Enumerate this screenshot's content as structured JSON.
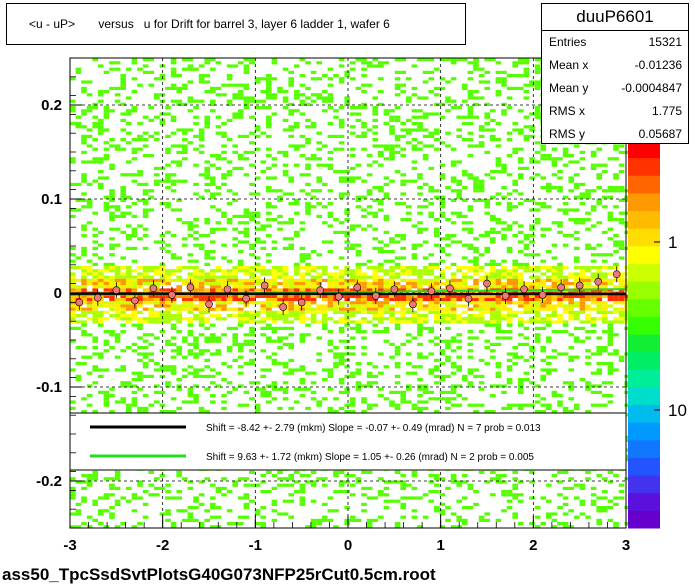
{
  "title": "<u - uP>       versus   u for Drift for barrel 3, layer 6 ladder 1, wafer 6",
  "stats": {
    "name": "duuP6601",
    "rows": [
      {
        "label": "Entries",
        "value": "15321"
      },
      {
        "label": "Mean x",
        "value": "-0.01236"
      },
      {
        "label": "Mean y",
        "value": "-0.0004847"
      },
      {
        "label": "RMS x",
        "value": "1.775"
      },
      {
        "label": "RMS y",
        "value": "0.05687"
      }
    ]
  },
  "footer": "ass50_TpcSsdSvtPlotsG40G073NFP25rCut0.5cm.root",
  "chart_data": {
    "type": "heatmap",
    "title": "<u - uP>       versus   u for Drift for barrel 3, layer 6 ladder 1, wafer 6",
    "xlabel": "",
    "ylabel": "",
    "xlim": [
      -3,
      3
    ],
    "ylim": [
      -0.25,
      0.25
    ],
    "x_ticks": [
      "-3",
      "-2",
      "-1",
      "0",
      "1",
      "2",
      "3"
    ],
    "y_ticks": [
      "-0.2",
      "-0.1",
      "0",
      "0.1",
      "0.2"
    ],
    "color_scale": "log",
    "color_ticks": [
      "1",
      "10"
    ],
    "grid": true,
    "colors": {
      "black_fit": "#000000",
      "green_fit": "#22dd22",
      "points": "#ee7777"
    },
    "legend": {
      "placement": "lower-center",
      "entries": [
        {
          "color": "#000000",
          "text": "Shift =    -8.42 +- 2.79 (mkm) Slope =    -0.07 +- 0.49 (mrad)  N = 7 prob = 0.013"
        },
        {
          "color": "#22dd22",
          "text": "Shift =    9.63 +- 1.72 (mkm) Slope =    1.05 +- 0.26 (mrad)  N = 2 prob = 0.005"
        }
      ]
    },
    "profile_points": {
      "x": [
        -2.9,
        -2.7,
        -2.5,
        -2.3,
        -2.1,
        -1.9,
        -1.7,
        -1.5,
        -1.3,
        -1.1,
        -0.9,
        -0.7,
        -0.5,
        -0.3,
        -0.1,
        0.1,
        0.3,
        0.5,
        0.7,
        0.9,
        1.1,
        1.3,
        1.5,
        1.7,
        1.9,
        2.1,
        2.3,
        2.5,
        2.7,
        2.9
      ],
      "y": [
        -0.01,
        -0.005,
        0.003,
        -0.008,
        0.005,
        -0.002,
        0.006,
        -0.012,
        0.004,
        -0.006,
        0.008,
        -0.015,
        -0.01,
        0.003,
        -0.004,
        0.006,
        -0.003,
        0.004,
        -0.012,
        0.002,
        0.005,
        -0.006,
        0.01,
        -0.003,
        0.004,
        -0.002,
        0.006,
        0.008,
        0.012,
        0.02
      ]
    },
    "fits": [
      {
        "name": "black",
        "shift_mkm": -8.42,
        "slope_mrad": -0.07
      },
      {
        "name": "green",
        "shift_mkm": 9.63,
        "slope_mrad": 1.05
      }
    ]
  }
}
